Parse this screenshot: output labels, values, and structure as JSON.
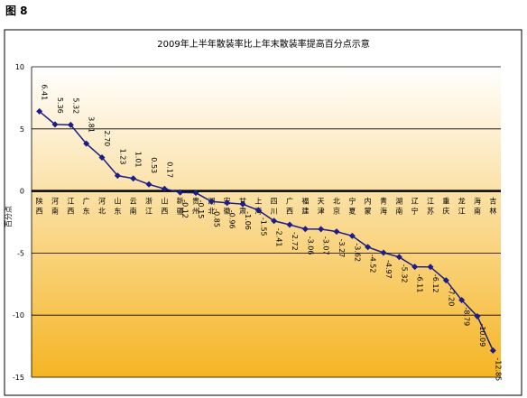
{
  "figure_label": "图 8",
  "chart_data": {
    "type": "line",
    "title": "2009年上半年散装率比上年末散装率提高百分点示意",
    "y_label": "百分点",
    "categories": [
      "陕西",
      "河南",
      "江西",
      "广东",
      "河北",
      "山东",
      "云南",
      "浙江",
      "山西",
      "新疆",
      "贵州",
      "湖北",
      "安徽",
      "甘肃",
      "上海",
      "四川",
      "广西",
      "福建",
      "天津",
      "北京",
      "宁夏",
      "内蒙",
      "青海",
      "湖南",
      "辽宁",
      "江苏",
      "重庆",
      "龙江",
      "海南",
      "吉林"
    ],
    "series": [
      {
        "name": "提高百分点",
        "color": "#1c1c8a",
        "values": [
          6.41,
          5.36,
          5.32,
          3.81,
          2.7,
          1.23,
          1.01,
          0.53,
          0.17,
          -0.12,
          -0.15,
          -0.85,
          -0.96,
          -1.06,
          -1.55,
          -2.41,
          -2.72,
          -3.06,
          -3.07,
          -3.27,
          -3.62,
          -4.52,
          -4.97,
          -5.32,
          -6.11,
          -6.12,
          -7.2,
          -8.79,
          -10.09,
          -12.85
        ],
        "value_labels": [
          "6.41",
          "5.36",
          "5.32",
          "3.81",
          "2.70",
          "1.23",
          "1.01",
          "0.53",
          "0.17",
          "-0.12",
          "-0.15",
          "-0.85",
          "-0.96",
          "-1.06",
          "-1.55",
          "-2.41",
          "-2.72",
          "-3.06",
          "-3.07",
          "-3.27",
          "-3.62",
          "-4.52",
          "-4.97",
          "-5.32",
          "-6.11",
          "-6.12",
          "-7.20",
          "-8.79",
          "-10.09",
          "-12.85"
        ]
      }
    ],
    "ylim": [
      -15,
      10
    ],
    "yticks": [
      -15,
      -10,
      -5,
      0,
      5,
      10
    ],
    "grid": true
  }
}
